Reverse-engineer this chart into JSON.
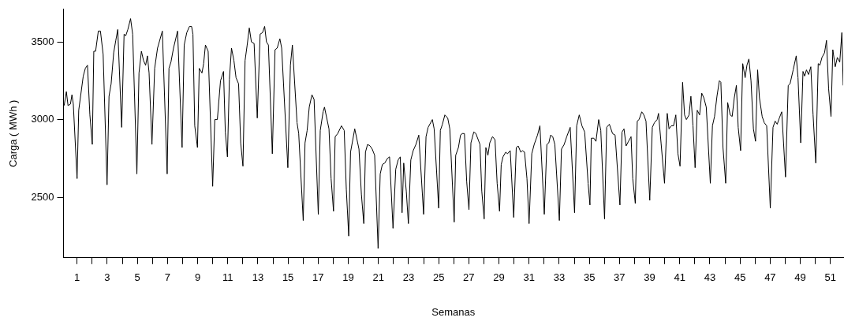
{
  "chart_data": {
    "type": "line",
    "xlabel": "Semanas",
    "ylabel": "Carga ( MWh )",
    "xlim": [
      0.1,
      51.85
    ],
    "ylim": [
      2110,
      3710
    ],
    "xticks": [
      1,
      {
        "value": 2,
        "label": null
      },
      3,
      {
        "value": 4,
        "label": null
      },
      5,
      {
        "value": 6,
        "label": null
      },
      7,
      {
        "value": 8,
        "label": null
      },
      9,
      {
        "value": 10,
        "label": null
      },
      11,
      {
        "value": 12,
        "label": null
      },
      13,
      {
        "value": 14,
        "label": null
      },
      15,
      {
        "value": 16,
        "label": null
      },
      17,
      {
        "value": 18,
        "label": null
      },
      19,
      {
        "value": 20,
        "label": null
      },
      21,
      {
        "value": 22,
        "label": null
      },
      23,
      {
        "value": 24,
        "label": null
      },
      25,
      {
        "value": 26,
        "label": null
      },
      27,
      {
        "value": 28,
        "label": null
      },
      29,
      {
        "value": 30,
        "label": null
      },
      31,
      {
        "value": 32,
        "label": null
      },
      33,
      {
        "value": 34,
        "label": null
      },
      35,
      {
        "value": 36,
        "label": null
      },
      37,
      {
        "value": 38,
        "label": null
      },
      39,
      {
        "value": 40,
        "label": null
      },
      41,
      {
        "value": 42,
        "label": null
      },
      43,
      {
        "value": 44,
        "label": null
      },
      45,
      {
        "value": 46,
        "label": null
      },
      47,
      {
        "value": 48,
        "label": null
      },
      49,
      {
        "value": 50,
        "label": null
      },
      51
    ],
    "yticks": [
      2500,
      3000,
      3500
    ],
    "marker": "none",
    "line_style": "solid",
    "series": [
      {
        "color": "#000000",
        "x": [
          0.14,
          0.29,
          0.4,
          0.56,
          0.66,
          0.75,
          1.0,
          1.11,
          1.41,
          1.55,
          1.69,
          1.85,
          2.01,
          2.11,
          2.23,
          2.41,
          2.55,
          2.73,
          2.99,
          3.12,
          3.26,
          3.43,
          3.57,
          3.7,
          3.96,
          4.12,
          4.23,
          4.37,
          4.55,
          4.69,
          4.97,
          5.11,
          5.27,
          5.41,
          5.55,
          5.67,
          5.78,
          5.97,
          6.15,
          6.34,
          6.66,
          6.98,
          7.1,
          7.23,
          7.4,
          7.67,
          7.97,
          8.11,
          8.28,
          8.46,
          8.6,
          8.69,
          8.81,
          8.99,
          9.11,
          9.29,
          9.4,
          9.52,
          9.7,
          10.0,
          10.14,
          10.31,
          10.52,
          10.72,
          10.84,
          10.98,
          11.11,
          11.25,
          11.41,
          11.55,
          11.72,
          11.86,
          12.01,
          12.15,
          12.29,
          12.43,
          12.57,
          12.75,
          12.96,
          13.15,
          13.31,
          13.45,
          13.57,
          13.7,
          13.96,
          14.14,
          14.28,
          14.46,
          14.58,
          14.99,
          15.16,
          15.29,
          15.6,
          15.71,
          16.01,
          16.13,
          16.27,
          16.41,
          16.59,
          16.73,
          17.01,
          17.14,
          17.33,
          17.42,
          17.72,
          17.86,
          18.02,
          18.13,
          18.3,
          18.55,
          18.73,
          18.87,
          19.03,
          19.15,
          19.43,
          19.71,
          19.87,
          20.03,
          20.14,
          20.28,
          20.45,
          20.59,
          20.75,
          20.98,
          21.12,
          21.26,
          21.42,
          21.6,
          21.74,
          21.97,
          22.15,
          22.31,
          22.45,
          22.57,
          22.68,
          22.85,
          22.99,
          23.15,
          23.31,
          23.49,
          23.68,
          24.0,
          24.16,
          24.3,
          24.58,
          24.7,
          25.0,
          25.11,
          25.25,
          25.41,
          25.6,
          25.74,
          26.03,
          26.13,
          26.31,
          26.45,
          26.57,
          26.71,
          26.86,
          27.01,
          27.14,
          27.33,
          27.47,
          27.74,
          27.86,
          28.02,
          28.13,
          28.27,
          28.39,
          28.57,
          28.74,
          28.88,
          29.04,
          29.15,
          29.27,
          29.45,
          29.57,
          29.75,
          29.98,
          30.15,
          30.28,
          30.45,
          30.56,
          30.7,
          30.86,
          31.0,
          31.18,
          31.34,
          31.56,
          31.72,
          32.01,
          32.18,
          32.31,
          32.43,
          32.57,
          32.71,
          33.01,
          33.15,
          33.33,
          33.5,
          33.73,
          34.02,
          34.16,
          34.33,
          34.51,
          34.69,
          34.92,
          35.04,
          35.13,
          35.3,
          35.44,
          35.62,
          35.76,
          36.01,
          36.15,
          36.33,
          36.54,
          36.71,
          37.03,
          37.17,
          37.3,
          37.44,
          37.6,
          37.77,
          37.88,
          38.05,
          38.18,
          38.3,
          38.48,
          38.62,
          38.76,
          39.01,
          39.18,
          39.32,
          39.5,
          39.59,
          39.76,
          39.99,
          40.17,
          40.29,
          40.44,
          40.59,
          40.74,
          40.88,
          41.02,
          41.19,
          41.32,
          41.44,
          41.62,
          41.74,
          41.88,
          42.02,
          42.16,
          42.32,
          42.46,
          42.6,
          42.76,
          43.03,
          43.17,
          43.31,
          43.47,
          43.63,
          43.73,
          43.87,
          44.05,
          44.18,
          44.35,
          44.48,
          44.62,
          44.76,
          44.88,
          45.04,
          45.18,
          45.34,
          45.46,
          45.59,
          45.73,
          45.89,
          46.03,
          46.17,
          46.29,
          46.47,
          46.61,
          46.77,
          47.01,
          47.19,
          47.33,
          47.47,
          47.61,
          47.77,
          48.02,
          48.2,
          48.32,
          48.53,
          48.73,
          48.85,
          49.03,
          49.18,
          49.29,
          49.41,
          49.55,
          49.7,
          49.85,
          50.03,
          50.19,
          50.3,
          50.44,
          50.61,
          50.74,
          50.88,
          51.04,
          51.16,
          51.32,
          51.46,
          51.62,
          51.76,
          51.85
        ],
        "values": [
          3090,
          3180,
          3090,
          3100,
          3160,
          3100,
          2620,
          3060,
          3280,
          3330,
          3350,
          3030,
          2840,
          3440,
          3440,
          3570,
          3570,
          3420,
          2580,
          3150,
          3230,
          3430,
          3510,
          3580,
          2950,
          3550,
          3540,
          3580,
          3650,
          3550,
          2650,
          3300,
          3440,
          3380,
          3350,
          3410,
          3300,
          2840,
          3330,
          3460,
          3570,
          2650,
          3330,
          3370,
          3460,
          3570,
          2820,
          3480,
          3560,
          3600,
          3600,
          3550,
          2960,
          2820,
          3330,
          3300,
          3360,
          3480,
          3440,
          2570,
          3000,
          3000,
          3250,
          3310,
          2920,
          2760,
          3260,
          3460,
          3380,
          3270,
          3230,
          2850,
          2700,
          3380,
          3480,
          3590,
          3500,
          3490,
          3010,
          3550,
          3560,
          3600,
          3500,
          3480,
          2780,
          3450,
          3460,
          3520,
          3460,
          2690,
          3350,
          3480,
          2980,
          2910,
          2350,
          2850,
          2930,
          3080,
          3160,
          3130,
          2390,
          2930,
          3050,
          3080,
          2940,
          2620,
          2410,
          2890,
          2910,
          2960,
          2930,
          2550,
          2250,
          2790,
          2940,
          2810,
          2520,
          2330,
          2790,
          2840,
          2830,
          2810,
          2770,
          2170,
          2650,
          2710,
          2720,
          2750,
          2760,
          2300,
          2680,
          2740,
          2760,
          2400,
          2720,
          2540,
          2330,
          2740,
          2800,
          2840,
          2900,
          2390,
          2890,
          2950,
          3000,
          2940,
          2430,
          2930,
          2970,
          3030,
          3010,
          2940,
          2340,
          2770,
          2820,
          2900,
          2910,
          2910,
          2600,
          2420,
          2850,
          2920,
          2910,
          2840,
          2540,
          2360,
          2820,
          2770,
          2850,
          2890,
          2870,
          2590,
          2410,
          2710,
          2760,
          2790,
          2780,
          2800,
          2370,
          2820,
          2830,
          2790,
          2800,
          2790,
          2620,
          2330,
          2780,
          2840,
          2900,
          2960,
          2390,
          2840,
          2850,
          2900,
          2890,
          2840,
          2350,
          2810,
          2840,
          2890,
          2950,
          2400,
          2960,
          3030,
          2960,
          2920,
          2590,
          2450,
          2880,
          2880,
          2860,
          3000,
          2930,
          2360,
          2950,
          2970,
          2910,
          2900,
          2450,
          2920,
          2940,
          2830,
          2860,
          2890,
          2620,
          2460,
          2990,
          3000,
          3050,
          3030,
          2990,
          2480,
          2950,
          2980,
          3000,
          3040,
          2850,
          2590,
          3040,
          2940,
          2960,
          2960,
          3030,
          2780,
          2700,
          3240,
          3030,
          3000,
          3030,
          3150,
          2960,
          2690,
          3060,
          3030,
          3170,
          3140,
          3080,
          2590,
          2960,
          3020,
          3150,
          3250,
          3240,
          2820,
          2590,
          3110,
          3030,
          3020,
          3140,
          3220,
          2950,
          2800,
          3360,
          3270,
          3350,
          3390,
          3250,
          2940,
          2860,
          3320,
          3140,
          3020,
          2980,
          2960,
          2430,
          2950,
          2990,
          2970,
          3010,
          3050,
          2630,
          3220,
          3230,
          3320,
          3410,
          3270,
          2850,
          3310,
          3280,
          3320,
          3290,
          3340,
          3030,
          2720,
          3360,
          3350,
          3400,
          3430,
          3510,
          3200,
          3020,
          3450,
          3340,
          3400,
          3370,
          3560,
          3220
        ]
      }
    ]
  }
}
